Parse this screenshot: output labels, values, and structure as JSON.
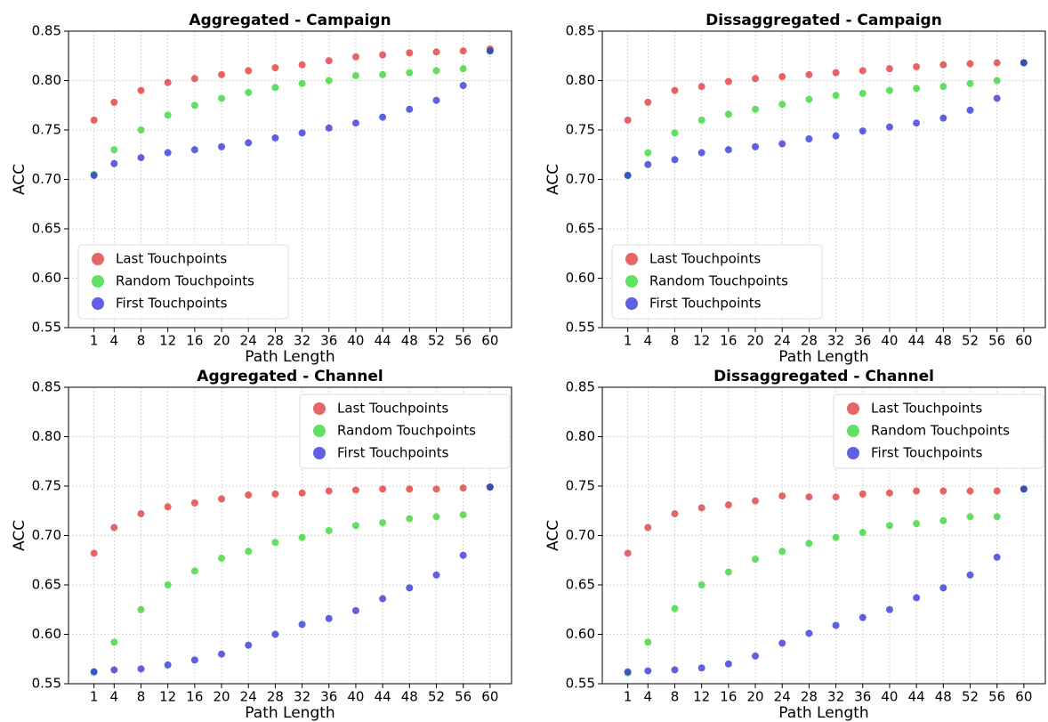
{
  "chart_data": [
    {
      "type": "scatter",
      "title": "Aggregated - Campaign",
      "x_label": "Path Length",
      "y_label": "ACC",
      "x": [
        1,
        4,
        8,
        12,
        16,
        20,
        24,
        28,
        32,
        36,
        40,
        44,
        48,
        52,
        56,
        60
      ],
      "series": [
        {
          "name": "Last Touchpoints",
          "color": "#e03131",
          "values": [
            0.76,
            0.778,
            0.79,
            0.798,
            0.802,
            0.806,
            0.81,
            0.813,
            0.816,
            0.82,
            0.824,
            0.826,
            0.828,
            0.829,
            0.83,
            0.832
          ]
        },
        {
          "name": "Random Touchpoints",
          "color": "#2fd62f",
          "values": [
            0.705,
            0.73,
            0.75,
            0.765,
            0.775,
            0.782,
            0.788,
            0.793,
            0.797,
            0.8,
            0.805,
            0.806,
            0.808,
            0.81,
            0.812,
            0.83
          ]
        },
        {
          "name": "First Touchpoints",
          "color": "#2b2bd9",
          "values": [
            0.704,
            0.716,
            0.722,
            0.727,
            0.73,
            0.733,
            0.737,
            0.742,
            0.747,
            0.752,
            0.757,
            0.763,
            0.771,
            0.78,
            0.795,
            0.83
          ]
        }
      ],
      "xlim": [
        -2.8,
        63.2
      ],
      "ylim": [
        0.55,
        0.85
      ],
      "xticks": [
        1,
        4,
        8,
        12,
        16,
        20,
        24,
        28,
        32,
        36,
        40,
        44,
        48,
        52,
        56,
        60
      ],
      "yticks": [
        0.55,
        {
          "value": 0.6,
          "label": "0.60"
        },
        0.65,
        {
          "value": 0.7,
          "label": "0.70"
        },
        0.75,
        {
          "value": 0.8,
          "label": "0.80"
        },
        0.85
      ],
      "grid": true,
      "legend": "lower left"
    },
    {
      "type": "scatter",
      "title": "Dissaggregated - Campaign",
      "x_label": "Path Length",
      "y_label": "ACC",
      "x": [
        1,
        4,
        8,
        12,
        16,
        20,
        24,
        28,
        32,
        36,
        40,
        44,
        48,
        52,
        56,
        60
      ],
      "series": [
        {
          "name": "Last Touchpoints",
          "color": "#e03131",
          "values": [
            0.76,
            0.778,
            0.79,
            0.794,
            0.799,
            0.802,
            0.804,
            0.806,
            0.808,
            0.81,
            0.812,
            0.814,
            0.816,
            0.817,
            0.818,
            0.818
          ]
        },
        {
          "name": "Random Touchpoints",
          "color": "#2fd62f",
          "values": [
            0.704,
            0.727,
            0.747,
            0.76,
            0.766,
            0.771,
            0.776,
            0.781,
            0.785,
            0.787,
            0.79,
            0.792,
            0.794,
            0.797,
            0.8,
            0.818
          ]
        },
        {
          "name": "First Touchpoints",
          "color": "#2b2bd9",
          "values": [
            0.704,
            0.715,
            0.72,
            0.727,
            0.73,
            0.733,
            0.736,
            0.741,
            0.744,
            0.749,
            0.753,
            0.757,
            0.762,
            0.77,
            0.782,
            0.818
          ]
        }
      ],
      "xlim": [
        -2.8,
        63.2
      ],
      "ylim": [
        0.55,
        0.85
      ],
      "xticks": [
        1,
        4,
        8,
        12,
        16,
        20,
        24,
        28,
        32,
        36,
        40,
        44,
        48,
        52,
        56,
        60
      ],
      "yticks": [
        0.55,
        {
          "value": 0.6,
          "label": "0.60"
        },
        0.65,
        {
          "value": 0.7,
          "label": "0.70"
        },
        0.75,
        {
          "value": 0.8,
          "label": "0.80"
        },
        0.85
      ],
      "grid": true,
      "legend": "lower left"
    },
    {
      "type": "scatter",
      "title": "Aggregated - Channel",
      "x_label": "Path Length",
      "y_label": "ACC",
      "x": [
        1,
        4,
        8,
        12,
        16,
        20,
        24,
        28,
        32,
        36,
        40,
        44,
        48,
        52,
        56,
        60
      ],
      "series": [
        {
          "name": "Last Touchpoints",
          "color": "#e03131",
          "values": [
            0.682,
            0.708,
            0.722,
            0.729,
            0.733,
            0.737,
            0.741,
            0.742,
            0.743,
            0.745,
            0.746,
            0.747,
            0.747,
            0.747,
            0.748,
            0.749
          ]
        },
        {
          "name": "Random Touchpoints",
          "color": "#2fd62f",
          "values": [
            0.562,
            0.592,
            0.625,
            0.65,
            0.664,
            0.677,
            0.684,
            0.693,
            0.698,
            0.705,
            0.71,
            0.713,
            0.717,
            0.719,
            0.721,
            0.749
          ]
        },
        {
          "name": "First Touchpoints",
          "color": "#2b2bd9",
          "values": [
            0.562,
            0.564,
            0.565,
            0.569,
            0.574,
            0.58,
            0.589,
            0.6,
            0.61,
            0.616,
            0.624,
            0.636,
            0.647,
            0.66,
            0.68,
            0.749
          ]
        }
      ],
      "xlim": [
        -2.8,
        63.2
      ],
      "ylim": [
        0.55,
        0.85
      ],
      "xticks": [
        1,
        4,
        8,
        12,
        16,
        20,
        24,
        28,
        32,
        36,
        40,
        44,
        48,
        52,
        56,
        60
      ],
      "yticks": [
        0.55,
        {
          "value": 0.6,
          "label": "0.60"
        },
        0.65,
        {
          "value": 0.7,
          "label": "0.70"
        },
        0.75,
        {
          "value": 0.8,
          "label": "0.80"
        },
        0.85
      ],
      "grid": true,
      "legend": "upper right"
    },
    {
      "type": "scatter",
      "title": "Dissaggregated - Channel",
      "x_label": "Path Length",
      "y_label": "ACC",
      "x": [
        1,
        4,
        8,
        12,
        16,
        20,
        24,
        28,
        32,
        36,
        40,
        44,
        48,
        52,
        56,
        60
      ],
      "series": [
        {
          "name": "Last Touchpoints",
          "color": "#e03131",
          "values": [
            0.682,
            0.708,
            0.722,
            0.728,
            0.731,
            0.735,
            0.74,
            0.739,
            0.739,
            0.742,
            0.743,
            0.745,
            0.745,
            0.745,
            0.745,
            0.747
          ]
        },
        {
          "name": "Random Touchpoints",
          "color": "#2fd62f",
          "values": [
            0.561,
            0.592,
            0.626,
            0.65,
            0.663,
            0.676,
            0.684,
            0.692,
            0.698,
            0.703,
            0.71,
            0.712,
            0.715,
            0.719,
            0.719,
            0.747
          ]
        },
        {
          "name": "First Touchpoints",
          "color": "#2b2bd9",
          "values": [
            0.562,
            0.563,
            0.564,
            0.566,
            0.57,
            0.578,
            0.591,
            0.601,
            0.609,
            0.617,
            0.625,
            0.637,
            0.647,
            0.66,
            0.678,
            0.747
          ]
        }
      ],
      "xlim": [
        -2.8,
        63.2
      ],
      "ylim": [
        0.55,
        0.85
      ],
      "xticks": [
        1,
        4,
        8,
        12,
        16,
        20,
        24,
        28,
        32,
        36,
        40,
        44,
        48,
        52,
        56,
        60
      ],
      "yticks": [
        0.55,
        {
          "value": 0.6,
          "label": "0.60"
        },
        0.65,
        {
          "value": 0.7,
          "label": "0.70"
        },
        0.75,
        {
          "value": 0.8,
          "label": "0.80"
        },
        0.85
      ],
      "grid": true,
      "legend": "upper right"
    }
  ]
}
